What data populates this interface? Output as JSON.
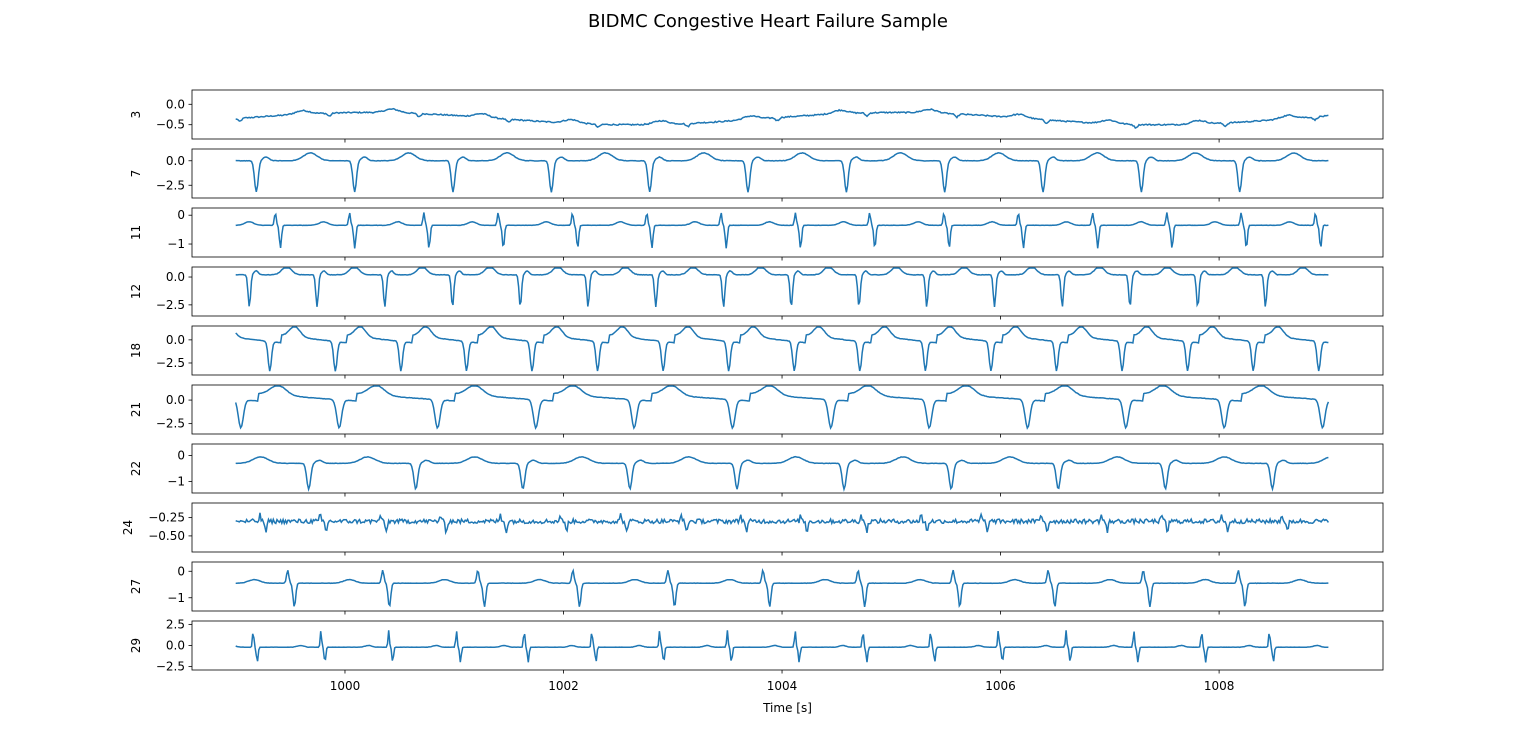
{
  "figure": {
    "title": "BIDMC Congestive Heart Failure Sample"
  },
  "chart_data": {
    "type": "line",
    "title": "BIDMC Congestive Heart Failure Sample",
    "xlabel": "Time [s]",
    "xlim": [
      998.6,
      1009.5
    ],
    "x_ticks": [
      1000,
      1002,
      1004,
      1006,
      1008
    ],
    "x_range": [
      999.0,
      1009.0
    ],
    "line_color": "#1f77b4",
    "grid": false,
    "panels": [
      {
        "ylabel": "3",
        "ylim": [
          -0.85,
          0.35
        ],
        "yticks": [
          0.0,
          -0.5
        ],
        "ytick_labels": [
          "0.0",
          "−0.5"
        ],
        "kind": "wander",
        "beat": 0.82,
        "base": -0.35,
        "amp": 0.25
      },
      {
        "ylabel": "7",
        "ylim": [
          -3.8,
          1.2
        ],
        "yticks": [
          0.0,
          -2.5
        ],
        "ytick_labels": [
          "0.0",
          "−2.5"
        ],
        "kind": "negspike",
        "beat": 0.9,
        "base": 0.0,
        "amp": 3.2
      },
      {
        "ylabel": "11",
        "ylim": [
          -1.45,
          0.25
        ],
        "yticks": [
          0,
          -1
        ],
        "ytick_labels": [
          "0",
          "−1"
        ],
        "kind": "dualspike",
        "beat": 0.68,
        "base": -0.35,
        "amp": 0.8
      },
      {
        "ylabel": "12",
        "ylim": [
          -3.5,
          0.9
        ],
        "yticks": [
          0.0,
          -2.5
        ],
        "ytick_labels": [
          "0.0",
          "−2.5"
        ],
        "kind": "negspike",
        "beat": 0.62,
        "base": 0.2,
        "amp": 2.9
      },
      {
        "ylabel": "18",
        "ylim": [
          -3.8,
          1.5
        ],
        "yticks": [
          0.0,
          -2.5
        ],
        "ytick_labels": [
          "0.0",
          "−2.5"
        ],
        "kind": "slope",
        "beat": 0.6,
        "base": 0.0,
        "amp": 3.2
      },
      {
        "ylabel": "21",
        "ylim": [
          -3.6,
          1.6
        ],
        "yticks": [
          0.0,
          -2.5
        ],
        "ytick_labels": [
          "0.0",
          "−2.5"
        ],
        "kind": "slope",
        "beat": 0.9,
        "base": 0.2,
        "amp": 3.0
      },
      {
        "ylabel": "22",
        "ylim": [
          -1.45,
          0.45
        ],
        "yticks": [
          0,
          -1
        ],
        "ytick_labels": [
          "0",
          "−1"
        ],
        "kind": "negspike",
        "beat": 0.98,
        "base": -0.3,
        "amp": 1.0
      },
      {
        "ylabel": "24",
        "ylim": [
          -0.72,
          -0.05
        ],
        "yticks": [
          -0.25,
          -0.5
        ],
        "ytick_labels": [
          "−0.25",
          "−0.50"
        ],
        "kind": "noisy",
        "beat": 0.55,
        "base": -0.3,
        "amp": 0.15
      },
      {
        "ylabel": "27",
        "ylim": [
          -1.5,
          0.35
        ],
        "yticks": [
          0,
          -1
        ],
        "ytick_labels": [
          "0",
          "−1"
        ],
        "kind": "dualspike",
        "beat": 0.87,
        "base": -0.45,
        "amp": 0.9
      },
      {
        "ylabel": "29",
        "ylim": [
          -2.9,
          2.9
        ],
        "yticks": [
          2.5,
          0.0,
          -2.5
        ],
        "ytick_labels": [
          "2.5",
          "0.0",
          "−2.5"
        ],
        "kind": "bispike",
        "beat": 0.62,
        "base": -0.2,
        "amp": 2.0
      }
    ]
  }
}
